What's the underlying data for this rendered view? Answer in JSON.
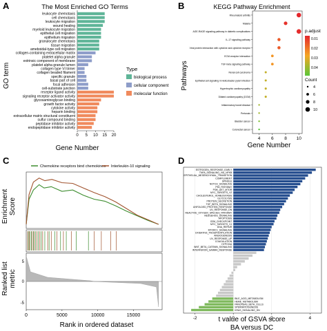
{
  "panel_labels": [
    "A",
    "B",
    "C",
    "D"
  ],
  "chart_data": [
    {
      "panel": "A",
      "type": "bar",
      "orientation": "horizontal",
      "title": "The Most Enriched GO Terms",
      "xlabel": "Gene Number",
      "ylabel": "GO term",
      "xlim": [
        0,
        20
      ],
      "xticks": [
        0,
        5,
        10,
        15,
        20
      ],
      "legend": {
        "title": "Type",
        "placement": "right",
        "entries": [
          {
            "name": "biological process",
            "color": "#5FB598"
          },
          {
            "name": "cellular component",
            "color": "#8E9DC9"
          },
          {
            "name": "molecular function",
            "color": "#F08A5D"
          }
        ]
      },
      "categories": [
        "leukocyte chemotaxis",
        "cell chemotaxis",
        "leukocyte migration",
        "wound healing",
        "myeloid leukocyte migration",
        "epithelial cell migration",
        "epithelium migration",
        "granulocyte chemotaxis",
        "tissue migration",
        "ameboidal-type cell migration",
        "collagen-containing extracellular matrix",
        "platelet alpha granule",
        "extrinsic component of membrane",
        "platelet alpha granule lumen",
        "collagen type VI trimer",
        "collagen beaded filament",
        "specific granule",
        "basal part of cell",
        "focal adhesion",
        "cell-substrate junction",
        "receptor ligand activity",
        "signaling receptor activator activity",
        "glycosaminoglycan binding",
        "growth factor activity",
        "cytokine activity",
        "heparin binding",
        "extracellular matrix structural constituent",
        "sulfur compound binding",
        "peptidase inhibitor activity",
        "endopeptidase inhibitor activity"
      ],
      "groups": [
        "biological process",
        "biological process",
        "biological process",
        "biological process",
        "biological process",
        "biological process",
        "biological process",
        "biological process",
        "biological process",
        "biological process",
        "cellular component",
        "cellular component",
        "cellular component",
        "cellular component",
        "cellular component",
        "cellular component",
        "cellular component",
        "cellular component",
        "cellular component",
        "cellular component",
        "molecular function",
        "molecular function",
        "molecular function",
        "molecular function",
        "molecular function",
        "molecular function",
        "molecular function",
        "molecular function",
        "molecular function",
        "molecular function"
      ],
      "values": [
        15,
        15,
        15,
        14,
        13,
        13,
        13,
        12,
        12,
        12,
        10,
        8,
        8,
        6,
        4,
        4,
        5,
        5,
        6,
        6,
        20,
        20,
        13,
        12,
        11,
        11,
        10,
        10,
        9,
        8
      ]
    },
    {
      "panel": "B",
      "type": "scatter",
      "title": "KEGG Pathway Enrichment",
      "xlabel": "Gene Number",
      "ylabel": "Pathways",
      "xlim": [
        3,
        10.5
      ],
      "xticks": [
        4,
        6,
        8,
        10
      ],
      "categories": [
        "Rheumatoid arthritis",
        "Malaria",
        "AGE-RAGE signaling pathway in diabetic complications",
        "IL-17 signaling pathway",
        "Viral protein interaction with cytokine and cytokine receptor",
        "ECM-receptor interaction",
        "TGF-beta signaling pathway",
        "Renal cell carcinoma",
        "Epithelial cell signaling in Helicobacter pylori infection",
        "Hypertrophic cardiomyopathy",
        "Dilated cardiomyopathy (DCM)",
        "Inflammatory bowel disease",
        "Pertussis",
        "Bladder cancer",
        "Colorectal cancer"
      ],
      "x": [
        10,
        8,
        10,
        7,
        7,
        6,
        6,
        5,
        5,
        5,
        5,
        4,
        4,
        4,
        4
      ],
      "p_adjust": [
        0.001,
        0.003,
        0.002,
        0.01,
        0.01,
        0.02,
        0.02,
        0.03,
        0.03,
        0.03,
        0.03,
        0.035,
        0.035,
        0.04,
        0.045
      ],
      "colorbar": {
        "title": "p.adjust",
        "ticks": [
          "0.01",
          "0.02",
          "0.03",
          "0.04"
        ],
        "low": "#E4262C",
        "high": "#5BC63A"
      },
      "size_legend": {
        "title": "Count",
        "ticks": [
          4,
          6,
          8,
          10
        ]
      }
    },
    {
      "panel": "C",
      "type": "line",
      "xlabel": "Rank in ordered dataset",
      "ylabel_top": [
        "Enrichment",
        "Score"
      ],
      "ylabel_bottom": [
        "Ranked list",
        "metric"
      ],
      "xlim": [
        0,
        19000
      ],
      "xticks": [
        0,
        5000,
        10000,
        15000
      ],
      "xtick_labels": [
        "0",
        "5000",
        "10000",
        "15000"
      ],
      "series": [
        {
          "name": "Chemokine receptors bind chemokines",
          "color": "#3C8C2E",
          "x": [
            0,
            400,
            1000,
            1800,
            2500,
            3500,
            5000,
            6500,
            8000,
            9500,
            11000,
            12500,
            14000,
            15500,
            17000,
            18500
          ],
          "y": [
            0,
            0.38,
            0.52,
            0.6,
            0.55,
            0.57,
            0.5,
            0.52,
            0.44,
            0.38,
            0.35,
            0.28,
            0.2,
            0.13,
            0.06,
            0
          ]
        },
        {
          "name": "Interleukin-10 signaling",
          "color": "#A0522D",
          "x": [
            0,
            400,
            1000,
            1800,
            2600,
            3600,
            5000,
            6500,
            8000,
            9500,
            11000,
            12500,
            14000,
            15500,
            17000,
            18500
          ],
          "y": [
            0,
            0.45,
            0.64,
            0.7,
            0.66,
            0.68,
            0.63,
            0.62,
            0.55,
            0.48,
            0.42,
            0.34,
            0.24,
            0.14,
            0.07,
            0
          ]
        }
      ],
      "ranked_metric": {
        "yticks": [
          "5",
          "0",
          "-5"
        ]
      },
      "hits": {
        "Chemokine receptors bind chemokines": [
          300,
          500,
          700,
          1000,
          1300,
          1700,
          2100,
          2600,
          3200,
          4000,
          4800,
          5600,
          7000,
          8700
        ],
        "Interleukin-10 signaling": [
          200,
          450,
          800,
          1100,
          1500,
          1900,
          2300,
          3000,
          3500,
          4300,
          5200,
          6300,
          9500,
          10500,
          11800,
          12600
        ]
      }
    },
    {
      "panel": "D",
      "type": "bar",
      "orientation": "horizontal",
      "xlabel": "t value of GSVA score",
      "xlabel2": "BA versus DC",
      "xlim": [
        -2.6,
        4.6
      ],
      "xticks": [
        -2,
        0,
        2,
        4
      ],
      "colors": {
        "up": "#234C8E",
        "ns": "#C8C8C8",
        "down": "#7EB95C"
      },
      "categories": [
        "ESTROGEN_RESPONSE_EARLY",
        "TNFA_SIGNALING_VIA_NFKB",
        "EPITHELIAL_MESENCHYMAL_TRANSITION",
        "COMPLEMENT",
        "SPINDLE",
        "NOTCH_SIGNALING",
        "P53_PATHWAY",
        "PI3K_AKT_MTOR",
        "MYC_TARGETS_V2",
        "CHOLESTEROL_HOMEOSTASIS",
        "GLYCOLYSIS",
        "PROTEIN_SECRETION",
        "TGF_BETA_SIGNALING",
        "UNFOLDED_PROTEIN_RESPONSE",
        "UV_RESPONSE_DN",
        "REACTIVE_OXYGEN_SPECIES_PATHWAY",
        "HEDGEHOG_SIGNALING",
        "APOPTOSIS",
        "G2M_CHECKPOINT",
        "MYC_TARGETS_V1",
        "DNA_REPAIR",
        "MTORC1_SIGNALING",
        "OXIDATIVE_PHOSPHORYLATION",
        "ANGIOGENESIS",
        "UV_RESPONSE_UP",
        "COAGULATION",
        "HYPOXIA",
        "WNT_BETA_CATENIN_SIGNALING",
        "INTERFERON_GAMMA_RESPONSE",
        "",
        "",
        "",
        "",
        "",
        "",
        "",
        "",
        "",
        "",
        "",
        "",
        "",
        "",
        "",
        "",
        "BILE_ACID_METABOLISM",
        "HEME_METABOLISM",
        "PANCREAS_BETA_CELLS",
        "SPERMATOGENESIS",
        "KRAS_SIGNALING_DN"
      ],
      "values": [
        4.3,
        4.1,
        3.9,
        3.75,
        3.6,
        3.5,
        3.35,
        3.2,
        3.1,
        2.95,
        2.85,
        2.75,
        2.65,
        2.55,
        2.45,
        2.4,
        2.3,
        2.25,
        2.15,
        2.1,
        2.0,
        1.95,
        1.9,
        1.85,
        1.8,
        1.75,
        1.7,
        1.65,
        1.6,
        1.2,
        1.0,
        0.8,
        0.6,
        0.4,
        0.2,
        0.1,
        -0.1,
        -0.2,
        -0.3,
        -0.4,
        -0.5,
        -0.6,
        -0.7,
        -0.8,
        -0.9,
        -1.1,
        -1.3,
        -1.5,
        -1.8,
        -2.2
      ],
      "status": [
        "up",
        "up",
        "up",
        "up",
        "up",
        "up",
        "up",
        "up",
        "up",
        "up",
        "up",
        "up",
        "up",
        "up",
        "up",
        "up",
        "up",
        "up",
        "up",
        "up",
        "up",
        "up",
        "up",
        "up",
        "up",
        "up",
        "up",
        "up",
        "up",
        "ns",
        "ns",
        "ns",
        "ns",
        "ns",
        "ns",
        "ns",
        "ns",
        "ns",
        "ns",
        "ns",
        "ns",
        "ns",
        "ns",
        "ns",
        "ns",
        "down",
        "down",
        "down",
        "down",
        "down"
      ]
    }
  ]
}
